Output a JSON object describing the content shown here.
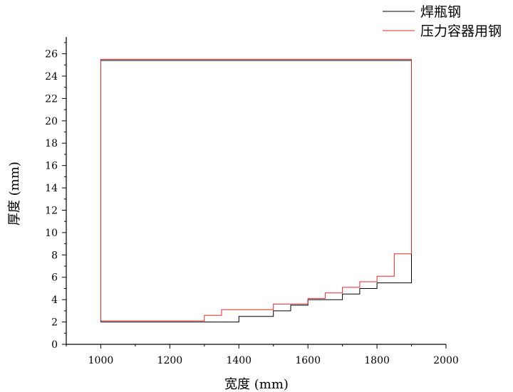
{
  "chart_data": {
    "type": "line",
    "xlabel": "宽度 (mm)",
    "ylabel": "厚度 (mm)",
    "xlim": [
      900,
      2000
    ],
    "ylim": [
      0,
      27.5
    ],
    "xticks": [
      1000,
      1200,
      1400,
      1600,
      1800,
      2000
    ],
    "yticks": [
      0,
      2,
      4,
      6,
      8,
      10,
      12,
      14,
      16,
      18,
      20,
      22,
      24,
      26
    ],
    "legend_position": "top-right",
    "grid": false,
    "series": [
      {
        "name": "焊瓶钢",
        "color": "#000000",
        "x": [
          1000,
          1000,
          1900,
          1900,
          1800,
          1800,
          1750,
          1750,
          1700,
          1700,
          1600,
          1600,
          1550,
          1550,
          1500,
          1500,
          1400,
          1400,
          1000
        ],
        "y": [
          2,
          25.4,
          25.4,
          5.5,
          5.5,
          5.0,
          5.0,
          4.5,
          4.5,
          4.0,
          4.0,
          3.5,
          3.5,
          3.0,
          3.0,
          2.5,
          2.5,
          2,
          2
        ]
      },
      {
        "name": "压力容器用钢",
        "color": "#e8272b",
        "x": [
          1000,
          1000,
          1900,
          1900,
          1850,
          1850,
          1800,
          1800,
          1750,
          1750,
          1700,
          1700,
          1650,
          1650,
          1600,
          1600,
          1500,
          1500,
          1350,
          1350,
          1300,
          1300,
          1000
        ],
        "y": [
          2.1,
          25.5,
          25.5,
          8.1,
          8.1,
          6.1,
          6.1,
          5.6,
          5.6,
          5.1,
          5.1,
          4.6,
          4.6,
          4.1,
          4.1,
          3.6,
          3.6,
          3.1,
          3.1,
          2.6,
          2.6,
          2.1,
          2.1
        ]
      }
    ]
  }
}
